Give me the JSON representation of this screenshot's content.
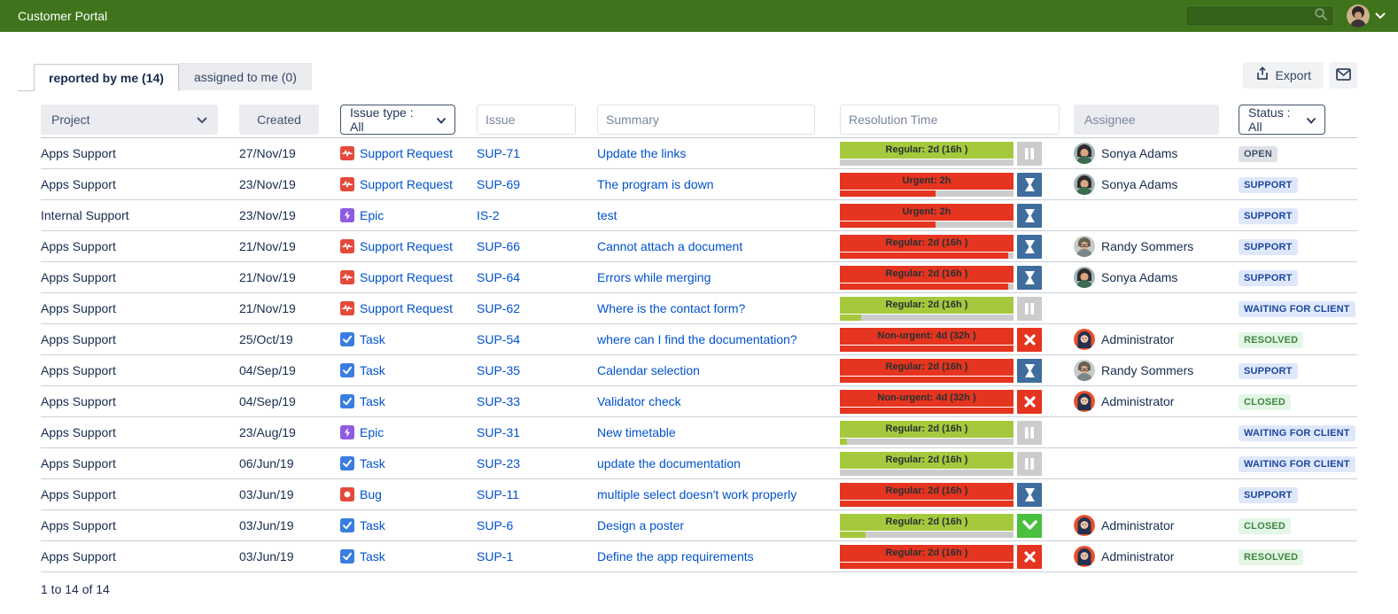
{
  "header": {
    "title": "Customer Portal",
    "search_placeholder": ""
  },
  "tabs": [
    {
      "label": "reported by me (14)",
      "active": true
    },
    {
      "label": "assigned to me (0)",
      "active": false
    }
  ],
  "toolbar": {
    "export_label": "Export"
  },
  "filters": {
    "project_label": "Project",
    "created_label": "Created",
    "issue_type_label": "Issue type : All",
    "issue_placeholder": "Issue",
    "summary_placeholder": "Summary",
    "resolution_placeholder": "Resolution Time",
    "assignee_label": "Assignee",
    "status_label": "Status : All"
  },
  "colors": {
    "topbar_green": "#40741c",
    "sla_red": "#e5341f",
    "sla_green": "#a5c93d",
    "sla_gray": "#cccccc",
    "hourglass_blue": "#3e6d9e",
    "check_green": "#49c03e",
    "link_blue": "#0052cc",
    "type_support": "#e5493a",
    "type_epic": "#8e5ce0",
    "type_task": "#3a7de0",
    "type_bug": "#e5493a"
  },
  "table": {
    "rows": [
      {
        "project": "Apps Support",
        "created": "27/Nov/19",
        "type": "Support Request",
        "type_icon": "support",
        "key": "SUP-71",
        "summary": "Update the links",
        "sla_label": "Regular: 2d (16h )",
        "sla_color": "green",
        "sla_fill_color": "none",
        "sla_fill_pct": 0,
        "sla_icon": "pause",
        "assignee": "Sonya Adams",
        "avatar": "sonya",
        "status": "OPEN",
        "status_kind": "gray"
      },
      {
        "project": "Apps Support",
        "created": "23/Nov/19",
        "type": "Support Request",
        "type_icon": "support",
        "key": "SUP-69",
        "summary": "The program is down",
        "sla_label": "Urgent: 2h",
        "sla_color": "red",
        "sla_fill_color": "red",
        "sla_fill_pct": 55,
        "sla_icon": "hourglass",
        "assignee": "Sonya Adams",
        "avatar": "sonya",
        "status": "SUPPORT",
        "status_kind": "blue"
      },
      {
        "project": "Internal Support",
        "created": "23/Nov/19",
        "type": "Epic",
        "type_icon": "epic",
        "key": "IS-2",
        "summary": "test",
        "sla_label": "Urgent: 2h",
        "sla_color": "red",
        "sla_fill_color": "red",
        "sla_fill_pct": 55,
        "sla_icon": "hourglass",
        "assignee": "",
        "avatar": "",
        "status": "SUPPORT",
        "status_kind": "blue"
      },
      {
        "project": "Apps Support",
        "created": "21/Nov/19",
        "type": "Support Request",
        "type_icon": "support",
        "key": "SUP-66",
        "summary": "Cannot attach a document",
        "sla_label": "Regular: 2d (16h )",
        "sla_color": "red",
        "sla_fill_color": "red",
        "sla_fill_pct": 97,
        "sla_icon": "hourglass",
        "assignee": "Randy Sommers",
        "avatar": "randy",
        "status": "SUPPORT",
        "status_kind": "blue"
      },
      {
        "project": "Apps Support",
        "created": "21/Nov/19",
        "type": "Support Request",
        "type_icon": "support",
        "key": "SUP-64",
        "summary": "Errors while merging",
        "sla_label": "Regular: 2d (16h )",
        "sla_color": "red",
        "sla_fill_color": "red",
        "sla_fill_pct": 97,
        "sla_icon": "hourglass",
        "assignee": "Sonya Adams",
        "avatar": "sonya",
        "status": "SUPPORT",
        "status_kind": "blue"
      },
      {
        "project": "Apps Support",
        "created": "21/Nov/19",
        "type": "Support Request",
        "type_icon": "support",
        "key": "SUP-62",
        "summary": "Where is the contact form?",
        "sla_label": "Regular: 2d (16h )",
        "sla_color": "green",
        "sla_fill_color": "green",
        "sla_fill_pct": 12,
        "sla_icon": "pause",
        "assignee": "",
        "avatar": "",
        "status": "WAITING FOR CLIENT",
        "status_kind": "blue"
      },
      {
        "project": "Apps Support",
        "created": "25/Oct/19",
        "type": "Task",
        "type_icon": "task",
        "key": "SUP-54",
        "summary": "where can I find the documentation?",
        "sla_label": "Non-urgent: 4d (32h )",
        "sla_color": "red",
        "sla_fill_color": "red",
        "sla_fill_pct": 100,
        "sla_icon": "x",
        "assignee": "Administrator",
        "avatar": "admin",
        "status": "RESOLVED",
        "status_kind": "green"
      },
      {
        "project": "Apps Support",
        "created": "04/Sep/19",
        "type": "Task",
        "type_icon": "task",
        "key": "SUP-35",
        "summary": "Calendar selection",
        "sla_label": "Regular: 2d (16h )",
        "sla_color": "red",
        "sla_fill_color": "red",
        "sla_fill_pct": 100,
        "sla_icon": "hourglass",
        "assignee": "Randy Sommers",
        "avatar": "randy",
        "status": "SUPPORT",
        "status_kind": "blue"
      },
      {
        "project": "Apps Support",
        "created": "04/Sep/19",
        "type": "Task",
        "type_icon": "task",
        "key": "SUP-33",
        "summary": "Validator check",
        "sla_label": "Non-urgent: 4d (32h )",
        "sla_color": "red",
        "sla_fill_color": "red",
        "sla_fill_pct": 100,
        "sla_icon": "x",
        "assignee": "Administrator",
        "avatar": "admin",
        "status": "CLOSED",
        "status_kind": "green"
      },
      {
        "project": "Apps Support",
        "created": "23/Aug/19",
        "type": "Epic",
        "type_icon": "epic",
        "key": "SUP-31",
        "summary": "New timetable",
        "sla_label": "Regular: 2d (16h )",
        "sla_color": "green",
        "sla_fill_color": "green",
        "sla_fill_pct": 4,
        "sla_icon": "pause",
        "assignee": "",
        "avatar": "",
        "status": "WAITING FOR CLIENT",
        "status_kind": "blue"
      },
      {
        "project": "Apps Support",
        "created": "06/Jun/19",
        "type": "Task",
        "type_icon": "task",
        "key": "SUP-23",
        "summary": "update the documentation",
        "sla_label": "Regular: 2d (16h )",
        "sla_color": "green",
        "sla_fill_color": "none",
        "sla_fill_pct": 0,
        "sla_icon": "pause",
        "assignee": "",
        "avatar": "",
        "status": "WAITING FOR CLIENT",
        "status_kind": "blue"
      },
      {
        "project": "Apps Support",
        "created": "03/Jun/19",
        "type": "Bug",
        "type_icon": "bug",
        "key": "SUP-11",
        "summary": "multiple select doesn't work properly",
        "sla_label": "Regular: 2d (16h )",
        "sla_color": "red",
        "sla_fill_color": "red",
        "sla_fill_pct": 100,
        "sla_icon": "hourglass",
        "assignee": "",
        "avatar": "",
        "status": "SUPPORT",
        "status_kind": "blue"
      },
      {
        "project": "Apps Support",
        "created": "03/Jun/19",
        "type": "Task",
        "type_icon": "task",
        "key": "SUP-6",
        "summary": "Design a poster",
        "sla_label": "Regular: 2d (16h )",
        "sla_color": "green",
        "sla_fill_color": "green",
        "sla_fill_pct": 15,
        "sla_icon": "check",
        "assignee": "Administrator",
        "avatar": "admin",
        "status": "CLOSED",
        "status_kind": "green"
      },
      {
        "project": "Apps Support",
        "created": "03/Jun/19",
        "type": "Task",
        "type_icon": "task",
        "key": "SUP-1",
        "summary": "Define the app requirements",
        "sla_label": "Regular: 2d (16h )",
        "sla_color": "red",
        "sla_fill_color": "red",
        "sla_fill_pct": 100,
        "sla_icon": "x",
        "assignee": "Administrator",
        "avatar": "admin",
        "status": "RESOLVED",
        "status_kind": "green"
      }
    ]
  },
  "footer": {
    "count_text": "1 to 14 of 14"
  }
}
